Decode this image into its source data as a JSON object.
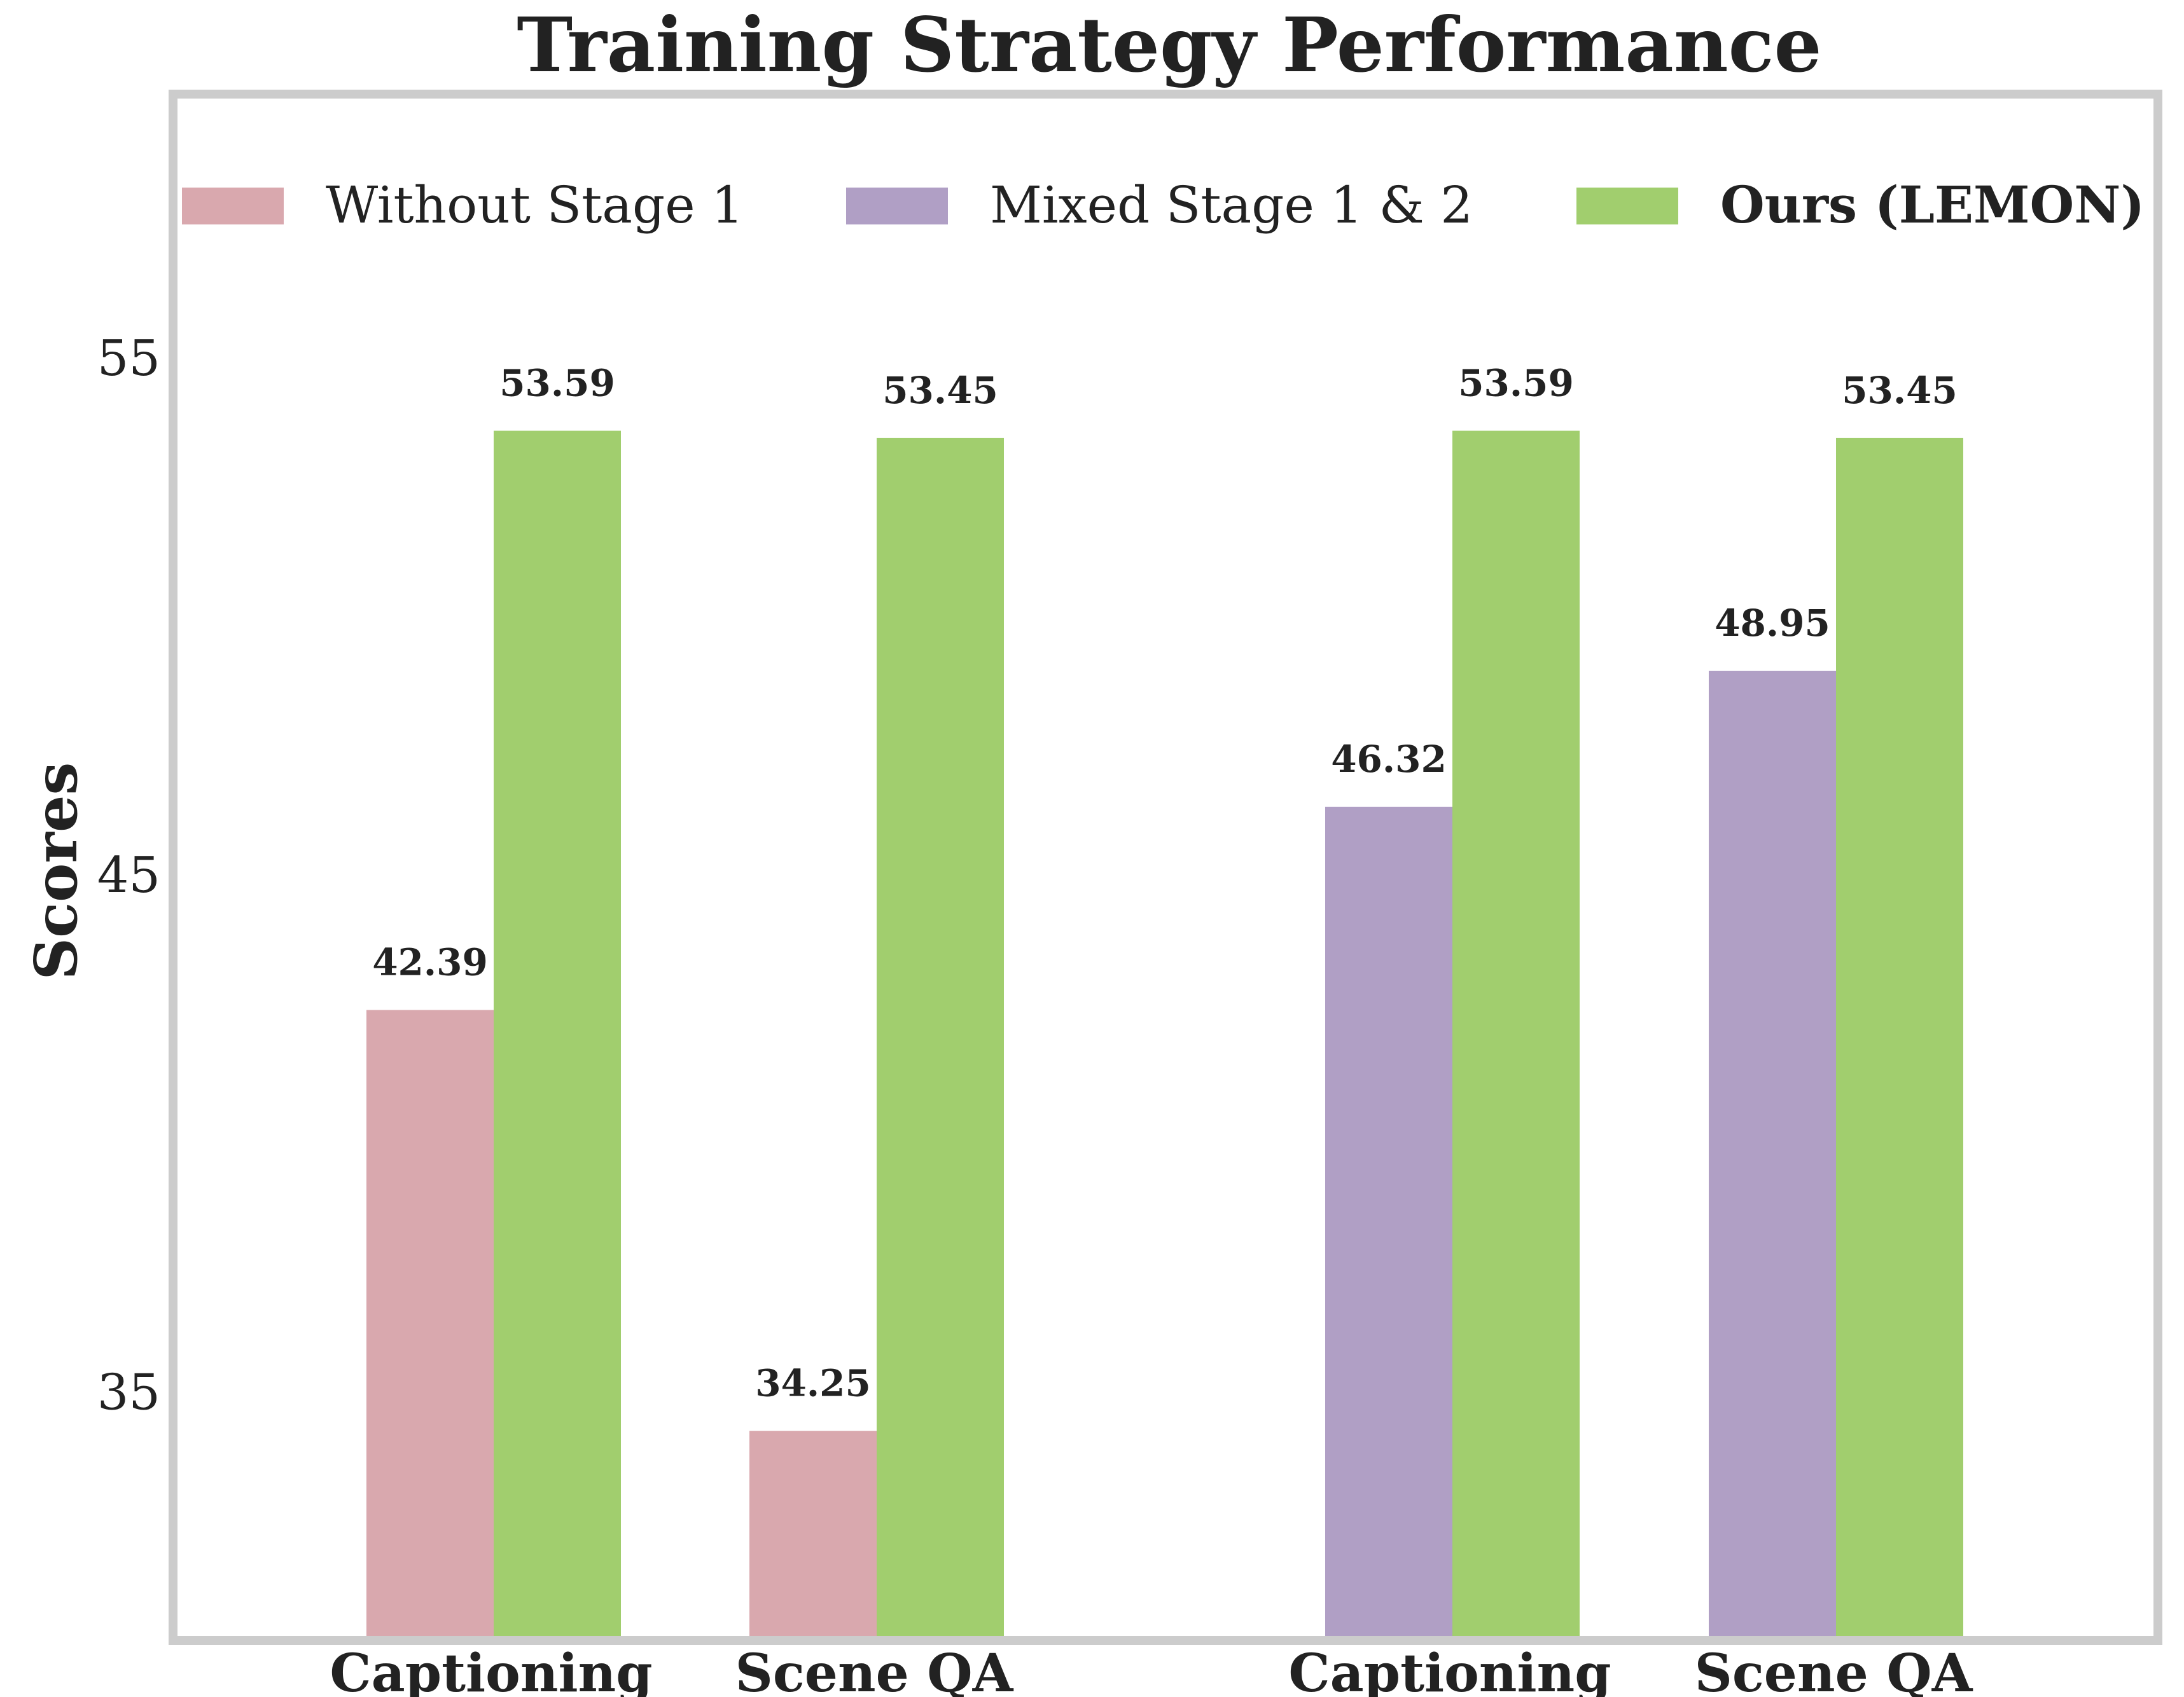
{
  "chart_data": {
    "type": "bar",
    "title": "Training Strategy Performance",
    "xlabel": "",
    "ylabel": "Scores",
    "ylim": [
      30.2,
      60.1
    ],
    "yticks": [
      35,
      45,
      55
    ],
    "grid": false,
    "legend_position": "top",
    "groups": [
      {
        "categories": [
          "Captioning",
          "Scene QA"
        ],
        "series_index": 0
      },
      {
        "categories": [
          "Captioning",
          "Scene QA"
        ],
        "series_index": 1
      }
    ],
    "series": [
      {
        "name": "Without Stage 1",
        "color": "#d9a8ae",
        "bold": false
      },
      {
        "name": "Mixed Stage 1 & 2",
        "color": "#b09fc5",
        "bold": false
      },
      {
        "name": "Ours (LEMON)",
        "color": "#a1ce6e",
        "bold": true
      }
    ],
    "bars": [
      {
        "group": 0,
        "category": "Captioning",
        "series": "Without Stage 1",
        "value": 42.39
      },
      {
        "group": 0,
        "category": "Captioning",
        "series": "Ours (LEMON)",
        "value": 53.59
      },
      {
        "group": 0,
        "category": "Scene QA",
        "series": "Without Stage 1",
        "value": 34.25
      },
      {
        "group": 0,
        "category": "Scene QA",
        "series": "Ours (LEMON)",
        "value": 53.45
      },
      {
        "group": 1,
        "category": "Captioning",
        "series": "Mixed Stage 1 & 2",
        "value": 46.32
      },
      {
        "group": 1,
        "category": "Captioning",
        "series": "Ours (LEMON)",
        "value": 53.59
      },
      {
        "group": 1,
        "category": "Scene QA",
        "series": "Mixed Stage 1 & 2",
        "value": 48.95
      },
      {
        "group": 1,
        "category": "Scene QA",
        "series": "Ours (LEMON)",
        "value": 53.45
      }
    ],
    "value_labels": [
      "42.39",
      "53.59",
      "34.25",
      "53.45",
      "46.32",
      "53.59",
      "48.95",
      "53.45"
    ]
  },
  "colors": {
    "frame": "#cccccc",
    "text": "#222222"
  }
}
